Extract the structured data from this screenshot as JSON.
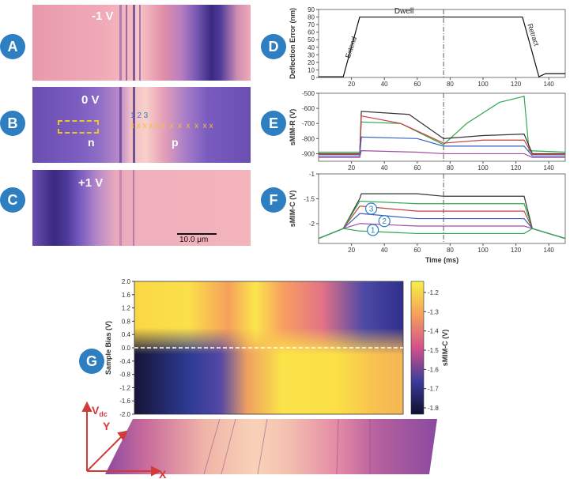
{
  "panels": {
    "A": {
      "badge": "A",
      "label": "-1 V"
    },
    "B": {
      "badge": "B",
      "label": "0 V",
      "n_label": "n",
      "p_label": "p",
      "index_label": "1 2 3",
      "markers": "x x x x x x  x  x  x  x  x x"
    },
    "C": {
      "badge": "C",
      "label": "+1 V",
      "scalebar": "10.0 μm"
    },
    "D": {
      "badge": "D"
    },
    "E": {
      "badge": "E"
    },
    "F": {
      "badge": "F"
    },
    "G": {
      "badge": "G"
    }
  },
  "colors": {
    "badge": "#2d7fc1",
    "dashed_box": "#f2c12e",
    "markers": "#f2c12e",
    "index": "#2d7fc1",
    "axes_arrow": "#d23a3a"
  },
  "chart_data": [
    {
      "id": "D",
      "type": "line",
      "ylabel": "Deflection Error (nm)",
      "xlim": [
        0,
        150
      ],
      "ylim": [
        0,
        90
      ],
      "yticks": [
        0,
        10,
        20,
        30,
        40,
        50,
        60,
        70,
        80,
        90
      ],
      "xticks": [
        20,
        40,
        60,
        80,
        100,
        120,
        140
      ],
      "annotations": {
        "extend": "Extend",
        "dwell": "Dwell",
        "retract": "Retract"
      },
      "x": [
        0,
        15,
        25,
        76,
        124,
        134,
        138,
        150
      ],
      "y": [
        1,
        1,
        80,
        80,
        80,
        1,
        5,
        5
      ]
    },
    {
      "id": "E",
      "type": "line",
      "ylabel": "sMIM-R (V)",
      "xlim": [
        0,
        150
      ],
      "ylim": [
        -950,
        -500
      ],
      "yticks": [
        -500,
        -600,
        -700,
        -800,
        -900
      ],
      "xticks": [
        20,
        40,
        60,
        80,
        100,
        120,
        140
      ],
      "series": [
        {
          "color": "#2fa84f",
          "x": [
            0,
            25,
            26,
            50,
            76,
            90,
            110,
            125,
            128,
            150
          ],
          "y": [
            -890,
            -890,
            -690,
            -700,
            -840,
            -700,
            -560,
            -520,
            -880,
            -890
          ]
        },
        {
          "color": "#333333",
          "x": [
            0,
            25,
            26,
            55,
            76,
            100,
            125,
            130,
            150
          ],
          "y": [
            -900,
            -900,
            -620,
            -640,
            -800,
            -780,
            -770,
            -900,
            -900
          ]
        },
        {
          "color": "#c84040",
          "x": [
            0,
            25,
            26,
            50,
            76,
            100,
            125,
            130,
            150
          ],
          "y": [
            -905,
            -905,
            -650,
            -700,
            -830,
            -810,
            -810,
            -905,
            -905
          ]
        },
        {
          "color": "#3a5fc0",
          "x": [
            0,
            25,
            26,
            60,
            76,
            125,
            130,
            150
          ],
          "y": [
            -915,
            -915,
            -790,
            -800,
            -850,
            -850,
            -915,
            -915
          ]
        },
        {
          "color": "#a050a0",
          "x": [
            0,
            25,
            26,
            60,
            76,
            125,
            130,
            150
          ],
          "y": [
            -925,
            -925,
            -880,
            -890,
            -900,
            -900,
            -925,
            -925
          ]
        }
      ]
    },
    {
      "id": "F",
      "type": "line",
      "ylabel": "sMIM-C (V)",
      "xlabel": "Time (ms)",
      "xlim": [
        0,
        150
      ],
      "ylim": [
        -2.4,
        -1
      ],
      "yticks": [
        -1,
        -1.5,
        -2
      ],
      "xticks": [
        20,
        40,
        60,
        80,
        100,
        120,
        140
      ],
      "circled_labels": [
        "3",
        "2",
        "1"
      ],
      "series": [
        {
          "color": "#333333",
          "x": [
            0,
            15,
            25,
            26,
            60,
            76,
            125,
            130,
            150
          ],
          "y": [
            -2.3,
            -2.1,
            -1.5,
            -1.4,
            -1.4,
            -1.45,
            -1.45,
            -2.1,
            -2.3
          ]
        },
        {
          "color": "#2fa84f",
          "x": [
            0,
            15,
            25,
            26,
            60,
            76,
            125,
            130,
            150
          ],
          "y": [
            -2.3,
            -2.1,
            -1.55,
            -1.55,
            -1.6,
            -1.6,
            -1.6,
            -2.1,
            -2.3
          ]
        },
        {
          "color": "#c84040",
          "x": [
            0,
            15,
            25,
            26,
            60,
            76,
            125,
            130,
            150
          ],
          "y": [
            -2.3,
            -2.1,
            -1.65,
            -1.65,
            -1.75,
            -1.75,
            -1.75,
            -2.1,
            -2.3
          ]
        },
        {
          "color": "#3a5fc0",
          "x": [
            0,
            15,
            25,
            26,
            60,
            76,
            125,
            130,
            150
          ],
          "y": [
            -2.3,
            -2.1,
            -1.8,
            -1.8,
            -1.9,
            -1.9,
            -1.9,
            -2.1,
            -2.3
          ]
        },
        {
          "color": "#a050a0",
          "x": [
            0,
            15,
            25,
            26,
            60,
            76,
            125,
            130,
            150
          ],
          "y": [
            -2.3,
            -2.1,
            -2.0,
            -2.0,
            -2.05,
            -2.05,
            -2.05,
            -2.1,
            -2.3
          ]
        },
        {
          "color": "#2fa84f",
          "x": [
            0,
            15,
            25,
            26,
            60,
            76,
            125,
            130,
            150
          ],
          "y": [
            -2.3,
            -2.1,
            -2.15,
            -2.15,
            -2.2,
            -2.2,
            -2.2,
            -2.1,
            -2.3
          ]
        }
      ]
    },
    {
      "id": "G",
      "type": "heatmap",
      "ylabel": "Sample Bias (V)",
      "colorbar_label": "sMIM-C (V)",
      "ylim": [
        -2.0,
        2.0
      ],
      "yticks": [
        "2.0",
        "1.6",
        "1.2",
        "0.8",
        "0.4",
        "0.0",
        "-0.4",
        "-0.8",
        "-1.2",
        "-1.6",
        "-2.0"
      ],
      "colorbar_ticks": [
        "-1.2",
        "-1.3",
        "-1.4",
        "-1.5",
        "-1.6",
        "-1.7",
        "-1.8"
      ],
      "dashed_line_at": 0.0
    }
  ],
  "axes3d": {
    "vdc": "V",
    "vdc_sub": "dc",
    "y": "Y",
    "x": "X"
  }
}
